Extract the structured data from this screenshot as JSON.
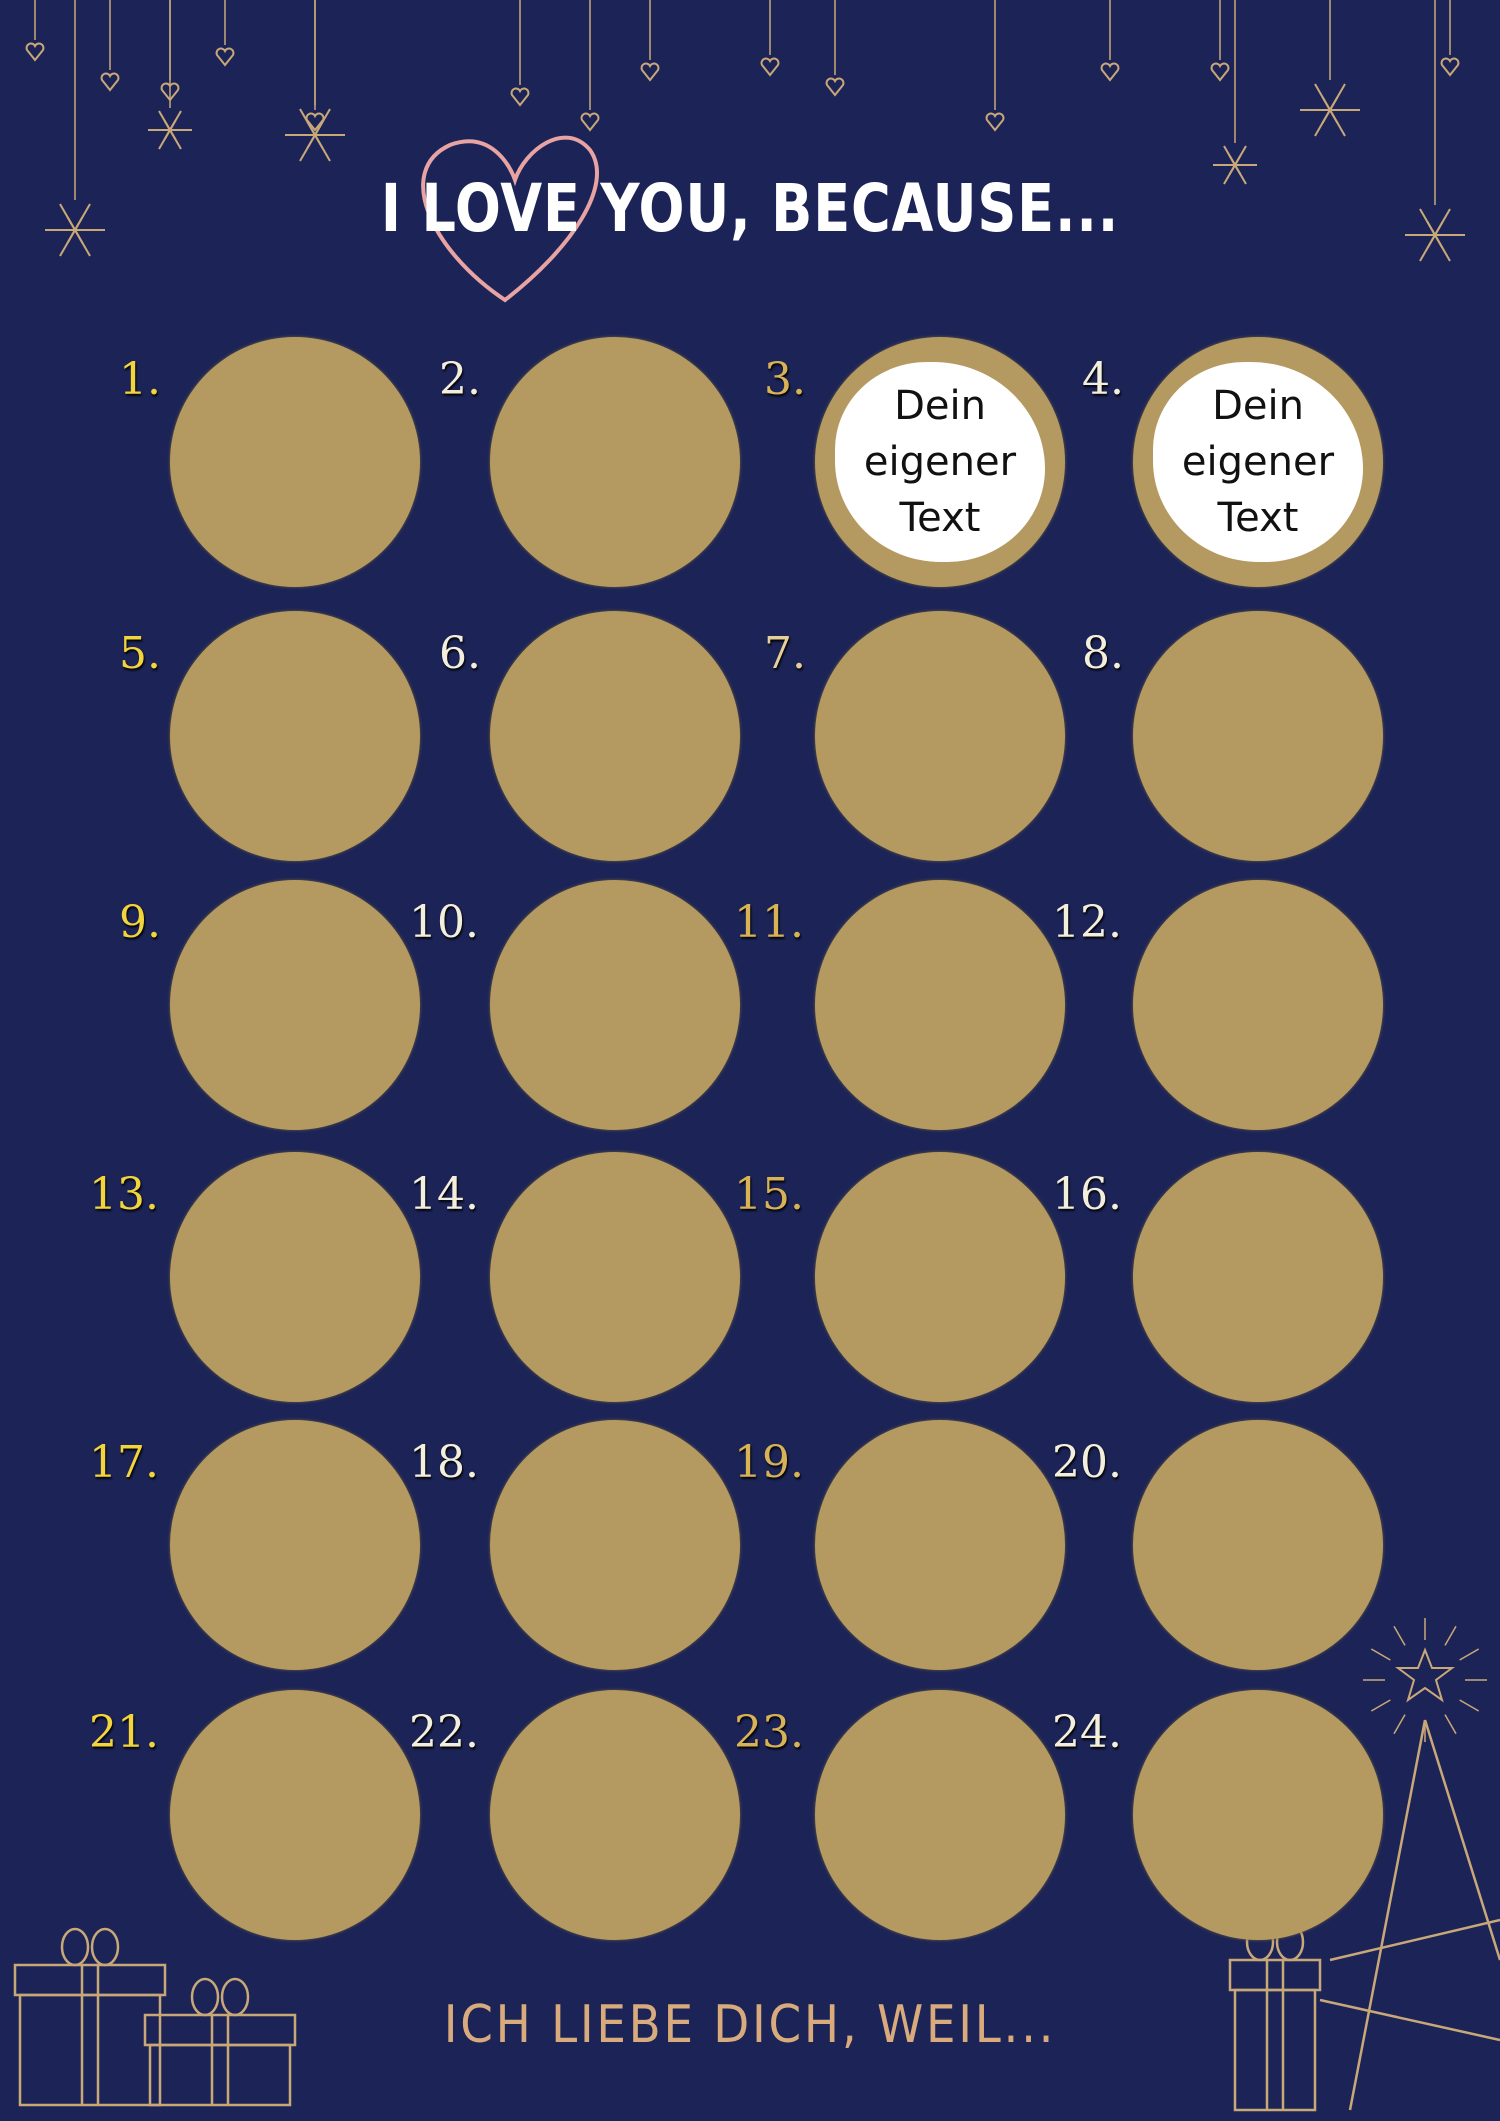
{
  "header": {
    "title": "I LOVE YOU, BECAUSE..."
  },
  "footer": {
    "text": "ICH LIEBE DICH, WEIL..."
  },
  "colors": {
    "background": "#1c2457",
    "scratch_gold": "#b49a60",
    "line_gold": "#c9a878",
    "heart_pink": "#e8a3a3"
  },
  "fields": [
    {
      "label": "1.",
      "color": "#f2d43c",
      "revealed": false
    },
    {
      "label": "2.",
      "color": "#f4efdc",
      "revealed": false
    },
    {
      "label": "3.",
      "color": "#d8b257",
      "revealed": true,
      "text": "Dein eigener Text"
    },
    {
      "label": "4.",
      "color": "#f4efdc",
      "revealed": true,
      "text": "Dein eigener Text"
    },
    {
      "label": "5.",
      "color": "#f2d43c",
      "revealed": false
    },
    {
      "label": "6.",
      "color": "#f4efdc",
      "revealed": false
    },
    {
      "label": "7.",
      "color": "#e6cf9a",
      "revealed": false
    },
    {
      "label": "8.",
      "color": "#f4efdc",
      "revealed": false
    },
    {
      "label": "9.",
      "color": "#f2d43c",
      "revealed": false
    },
    {
      "label": "10.",
      "color": "#f4efdc",
      "revealed": false
    },
    {
      "label": "11.",
      "color": "#d8b257",
      "revealed": false
    },
    {
      "label": "12.",
      "color": "#f4efdc",
      "revealed": false
    },
    {
      "label": "13.",
      "color": "#f2d43c",
      "revealed": false
    },
    {
      "label": "14.",
      "color": "#f4efdc",
      "revealed": false
    },
    {
      "label": "15.",
      "color": "#d8b257",
      "revealed": false
    },
    {
      "label": "16.",
      "color": "#f4efdc",
      "revealed": false
    },
    {
      "label": "17.",
      "color": "#f2d43c",
      "revealed": false
    },
    {
      "label": "18.",
      "color": "#f4efdc",
      "revealed": false
    },
    {
      "label": "19.",
      "color": "#d8b257",
      "revealed": false
    },
    {
      "label": "20.",
      "color": "#f4efdc",
      "revealed": false
    },
    {
      "label": "21.",
      "color": "#f2d43c",
      "revealed": false
    },
    {
      "label": "22.",
      "color": "#f4efdc",
      "revealed": false
    },
    {
      "label": "23.",
      "color": "#d8b257",
      "revealed": false
    },
    {
      "label": "24.",
      "color": "#f4efdc",
      "revealed": false
    }
  ]
}
